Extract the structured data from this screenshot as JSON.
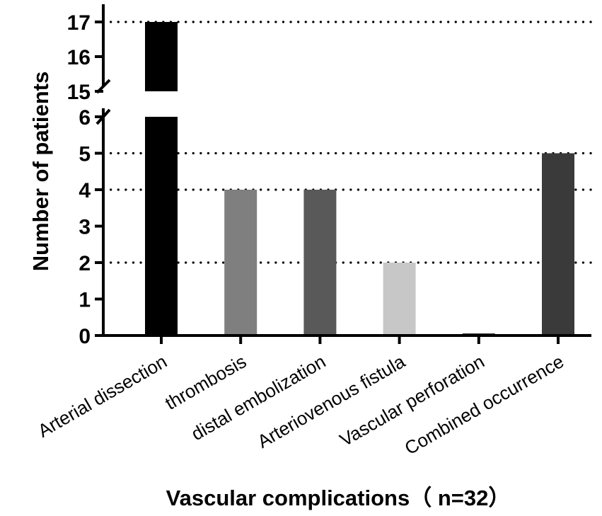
{
  "chart_data": {
    "type": "bar",
    "title": "",
    "xlabel": "Vascular complications（ n=32）",
    "ylabel": "Number of patients",
    "categories": [
      "Arterial dissection",
      "thrombosis",
      "distal embolization",
      "Arteriovenous fistula",
      "Vascular perforation",
      "Combined occurrence"
    ],
    "values": [
      17,
      4,
      4,
      2,
      0,
      5
    ],
    "colors": [
      "#000000",
      "#7f7f7f",
      "#595959",
      "#c7c7c7",
      "#333333",
      "#3a3a3a"
    ],
    "y_axis_break": {
      "lower_range": [
        0,
        6
      ],
      "upper_range": [
        15,
        17
      ]
    },
    "lower_ticks": [
      0,
      1,
      2,
      3,
      4,
      5,
      6
    ],
    "upper_ticks": [
      15,
      16,
      17
    ],
    "dotted_gridlines_at": [
      2,
      4,
      5,
      17
    ],
    "grid": "dotted horizontal at selected values"
  }
}
